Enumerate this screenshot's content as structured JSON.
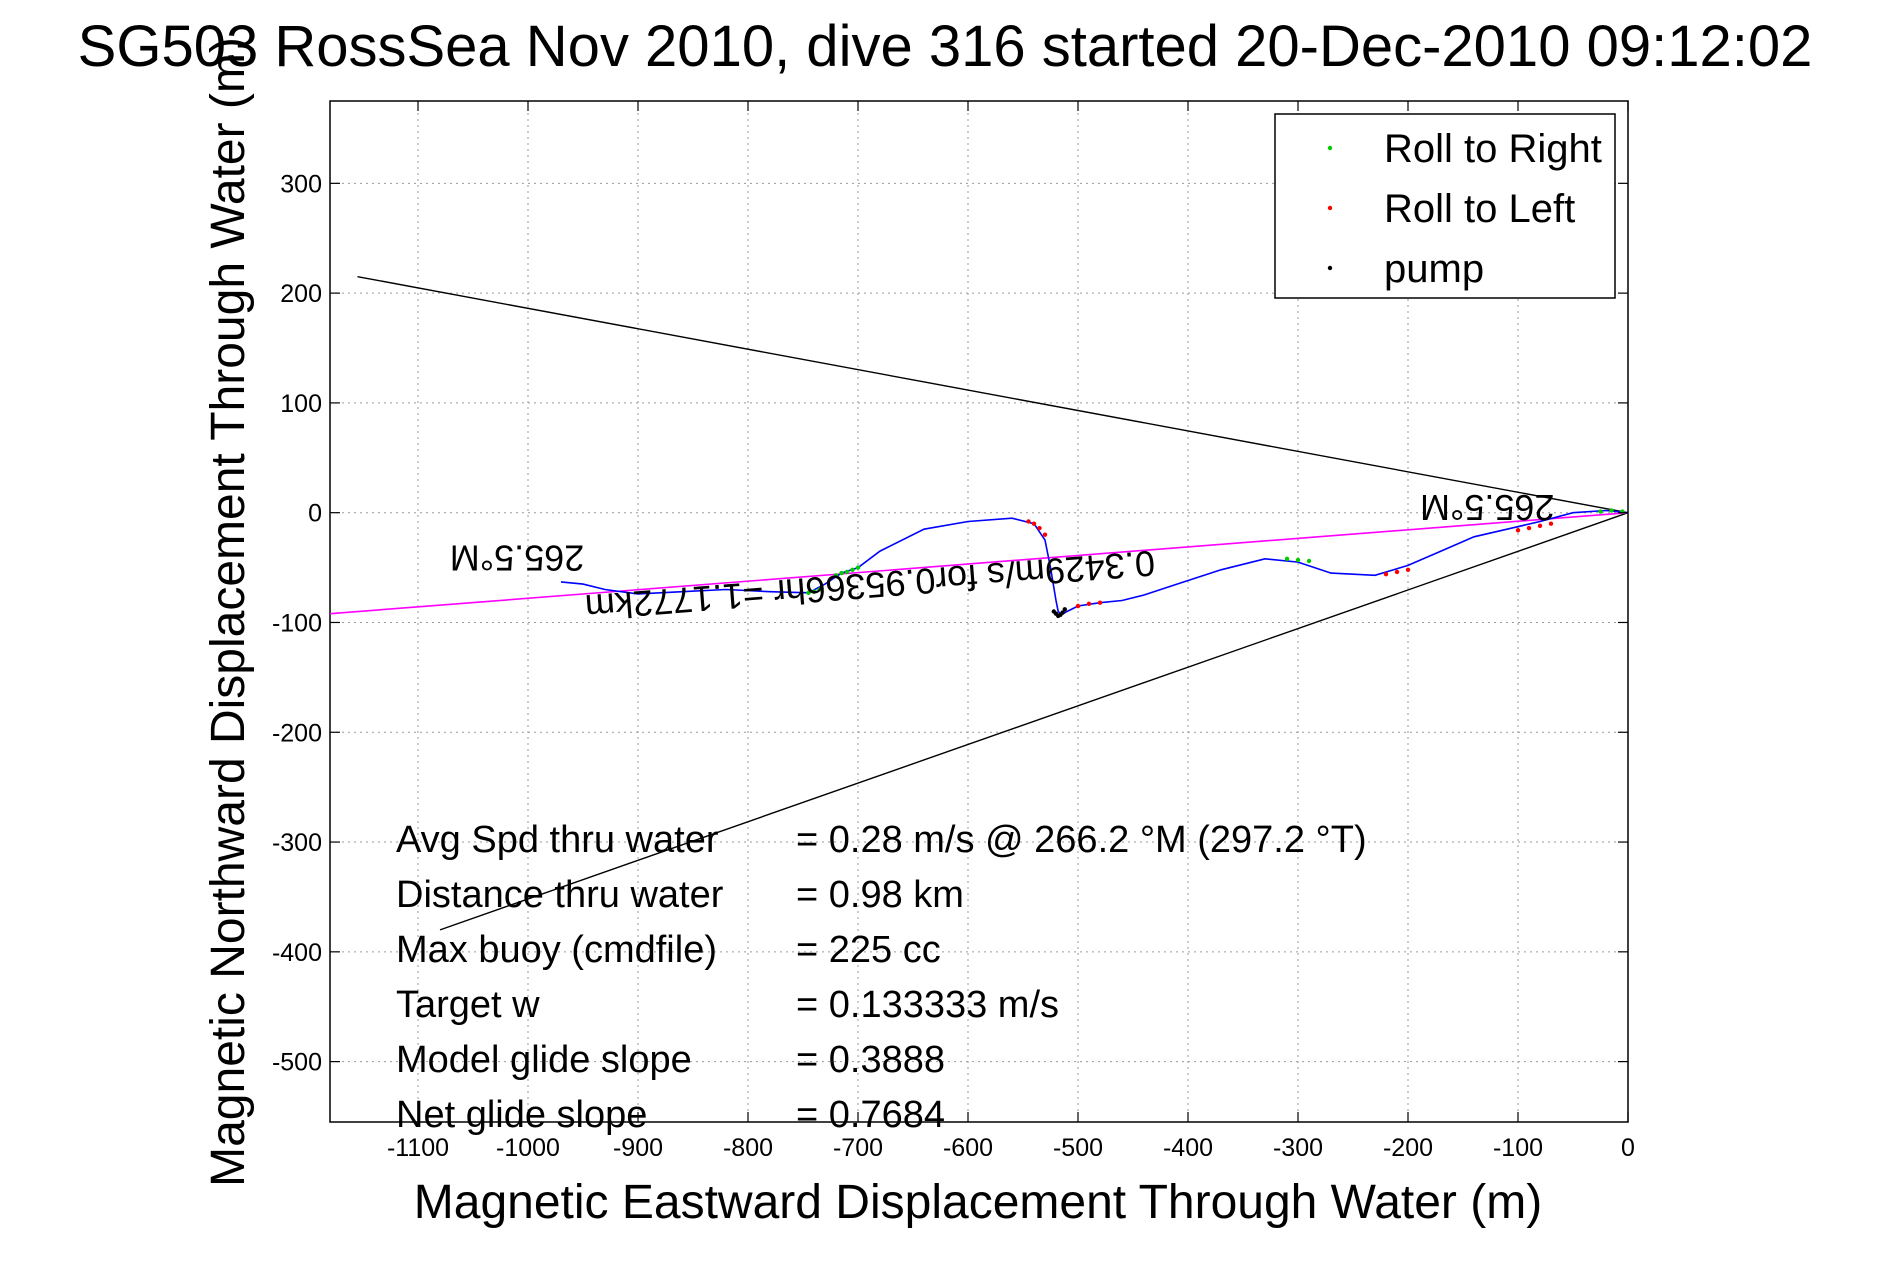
{
  "chart_data": {
    "type": "line",
    "title": "SG503 RossSea Nov 2010, dive 316 started 20-Dec-2010 09:12:02",
    "xlabel": "Magnetic Eastward Displacement Through Water (m)",
    "ylabel": "Magnetic Northward Displacement Through Water (m)",
    "xlim": [
      -1180,
      0
    ],
    "ylim": [
      -555,
      375
    ],
    "xticks": [
      "-1100",
      "-1000",
      "-900",
      "-800",
      "-700",
      "-600",
      "-500",
      "-400",
      "-300",
      "-200",
      "-100",
      "0"
    ],
    "yticks": [
      "300",
      "200",
      "100",
      "0",
      "-100",
      "-200",
      "-300",
      "-400",
      "-500"
    ],
    "grid": true,
    "legend_position": "top-right",
    "legend": [
      {
        "label": "Roll to Right",
        "color": "#00cc00"
      },
      {
        "label": "Roll to Left",
        "color": "#ff0000"
      },
      {
        "label": "pump",
        "color": "#000000"
      }
    ],
    "colors": {
      "track": "#0000ff",
      "heading_line": "#ff00ff",
      "cone_lines": "#000000",
      "roll_right": "#00cc00",
      "roll_left": "#ff0000",
      "pump": "#000000"
    },
    "series": [
      {
        "kind": "track",
        "x": [
          0,
          -20,
          -50,
          -80,
          -110,
          -140,
          -170,
          -200,
          -230,
          -270,
          -300,
          -330,
          -370,
          -410,
          -440,
          -460,
          -480,
          -500,
          -510,
          -515,
          -518,
          -520,
          -525,
          -530,
          -540,
          -560,
          -600,
          -640,
          -680,
          -700,
          -715,
          -730,
          -745,
          -780,
          -820,
          -860,
          -900,
          -930,
          -950,
          -970
        ],
        "y": [
          0,
          2,
          0,
          -8,
          -15,
          -22,
          -35,
          -48,
          -57,
          -55,
          -45,
          -42,
          -52,
          -65,
          -75,
          -80,
          -82,
          -85,
          -90,
          -93,
          -90,
          -80,
          -50,
          -25,
          -10,
          -5,
          -8,
          -15,
          -35,
          -50,
          -55,
          -65,
          -73,
          -72,
          -70,
          -72,
          -74,
          -70,
          -65,
          -63
        ]
      },
      {
        "kind": "heading_line",
        "x": [
          -1180,
          0
        ],
        "y": [
          -92,
          0
        ]
      },
      {
        "kind": "cone_upper",
        "x": [
          -1155,
          0
        ],
        "y": [
          215,
          0
        ]
      },
      {
        "kind": "cone_lower",
        "x": [
          -1080,
          0
        ],
        "y": [
          -380,
          0
        ]
      },
      {
        "kind": "roll_right_points",
        "name": "Roll to Right",
        "x": [
          -5,
          -15,
          -25,
          -290,
          -300,
          -310,
          -700,
          -705,
          -710,
          -715,
          -720,
          -735,
          -740,
          -745
        ],
        "y": [
          1,
          2,
          1,
          -44,
          -43,
          -42,
          -50,
          -52,
          -54,
          -55,
          -57,
          -70,
          -72,
          -73
        ]
      },
      {
        "kind": "roll_left_points",
        "name": "Roll to Left",
        "x": [
          -70,
          -80,
          -90,
          -100,
          -200,
          -210,
          -220,
          -480,
          -490,
          -500,
          -530,
          -535,
          -540,
          -545
        ],
        "y": [
          -10,
          -12,
          -14,
          -16,
          -52,
          -54,
          -56,
          -82,
          -83,
          -85,
          -20,
          -14,
          -10,
          -8
        ]
      },
      {
        "kind": "pump_points",
        "name": "pump",
        "x": [
          -512,
          -514,
          -516,
          -518,
          -520,
          -522
        ],
        "y": [
          -88,
          -91,
          -93,
          -94,
          -92,
          -90
        ]
      }
    ],
    "annotations": [
      {
        "text": "265.5°M",
        "x": -1010,
        "y": -30,
        "rotation_deg": 180
      },
      {
        "text": "265.5°M",
        "x": -128,
        "y": 16,
        "rotation_deg": 180
      },
      {
        "text": "0.3429m/s for0.95366hr =1.1772km",
        "x": -690,
        "y": -55,
        "rotation_deg": 175.5
      }
    ],
    "stats": [
      {
        "label": "Avg Spd thru water",
        "value": "=  0.28 m/s @ 266.2 °M (297.2 °T)"
      },
      {
        "label": "Distance thru water",
        "value": "=  0.98 km"
      },
      {
        "label": "Max buoy (cmdfile)",
        "value": "= 225 cc"
      },
      {
        "label": "Target w",
        "value": "= 0.133333 m/s"
      },
      {
        "label": "Model glide slope",
        "value": "= 0.3888"
      },
      {
        "label": "Net glide slope",
        "value": "= 0.7684"
      }
    ]
  }
}
